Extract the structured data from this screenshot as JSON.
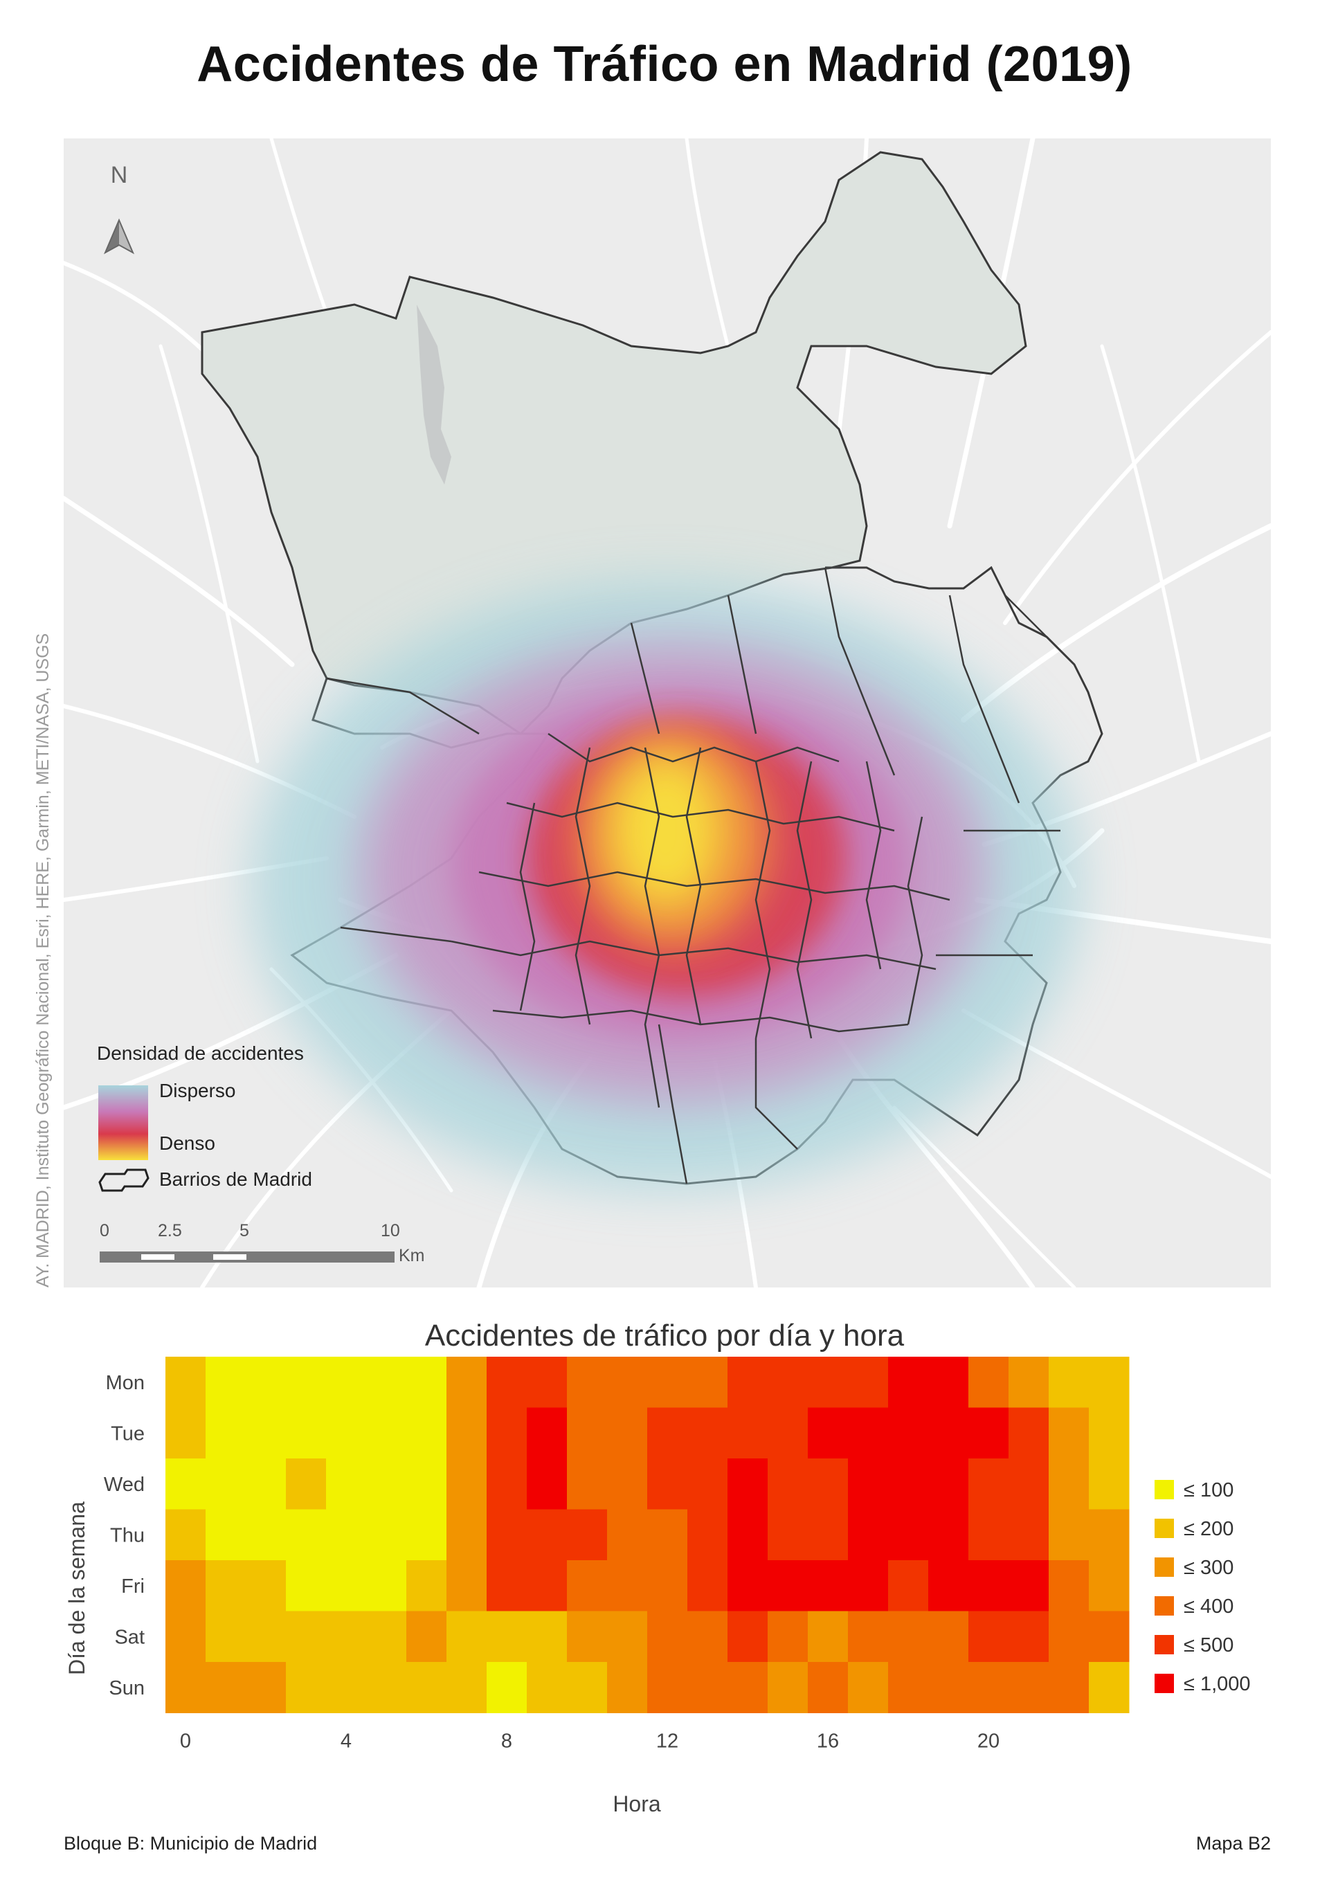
{
  "title": "Accidentes de Tráfico en Madrid (2019)",
  "map": {
    "north_label": "N",
    "attribution": "AY. MADRID, Instituto Geográfico Nacional, Esri, HERE, Garmin, METI/NASA, USGS",
    "legend": {
      "title": "Densidad de accidentes",
      "disperse_label": "Disperso",
      "dense_label": "Denso",
      "barrios_label": "Barrios de Madrid",
      "gradient_colors": [
        "#a8d4dc",
        "#c879b8",
        "#d93a4c",
        "#f8e03c"
      ]
    },
    "scalebar": {
      "ticks": [
        "0",
        "2.5",
        "5",
        "10"
      ],
      "unit": "Km"
    }
  },
  "chart_data": {
    "type": "heatmap",
    "title": "Accidentes de tráfico por día y hora",
    "xlabel": "Hora",
    "ylabel": "Día de la semana",
    "x": [
      0,
      1,
      2,
      3,
      4,
      5,
      6,
      7,
      8,
      9,
      10,
      11,
      12,
      13,
      14,
      15,
      16,
      17,
      18,
      19,
      20,
      21,
      22,
      23
    ],
    "x_ticks": [
      "0",
      "4",
      "8",
      "12",
      "16",
      "20"
    ],
    "y": [
      "Mon",
      "Tue",
      "Wed",
      "Thu",
      "Fri",
      "Sat",
      "Sun"
    ],
    "legend_bins": [
      "≤ 100",
      "≤ 200",
      "≤ 300",
      "≤ 400",
      "≤ 500",
      "≤ 1,000"
    ],
    "bin_colors": [
      "#f2f200",
      "#f2c200",
      "#f29400",
      "#f26b00",
      "#f23400",
      "#f20000"
    ],
    "bin_values": [
      [
        2,
        1,
        1,
        1,
        1,
        1,
        1,
        3,
        5,
        5,
        4,
        4,
        4,
        4,
        5,
        5,
        5,
        5,
        6,
        6,
        4,
        3,
        2,
        2
      ],
      [
        2,
        1,
        1,
        1,
        1,
        1,
        1,
        3,
        5,
        6,
        4,
        4,
        5,
        5,
        5,
        5,
        6,
        6,
        6,
        6,
        6,
        5,
        3,
        2
      ],
      [
        1,
        1,
        1,
        2,
        1,
        1,
        1,
        3,
        5,
        6,
        4,
        4,
        5,
        5,
        6,
        5,
        5,
        6,
        6,
        6,
        5,
        5,
        3,
        2
      ],
      [
        2,
        1,
        1,
        1,
        1,
        1,
        1,
        3,
        5,
        5,
        5,
        4,
        4,
        5,
        6,
        5,
        5,
        6,
        6,
        6,
        5,
        5,
        3,
        3
      ],
      [
        3,
        2,
        2,
        1,
        1,
        1,
        2,
        3,
        5,
        5,
        4,
        4,
        4,
        5,
        6,
        6,
        6,
        6,
        5,
        6,
        6,
        6,
        4,
        3
      ],
      [
        3,
        2,
        2,
        2,
        2,
        2,
        3,
        2,
        2,
        2,
        3,
        3,
        4,
        4,
        5,
        4,
        3,
        4,
        4,
        4,
        5,
        5,
        4,
        4
      ],
      [
        3,
        3,
        3,
        2,
        2,
        2,
        2,
        2,
        1,
        2,
        2,
        3,
        4,
        4,
        4,
        3,
        4,
        3,
        4,
        4,
        4,
        4,
        4,
        2
      ]
    ]
  },
  "footer": {
    "left": "Bloque B: Municipio de Madrid",
    "right": "Mapa B2"
  }
}
